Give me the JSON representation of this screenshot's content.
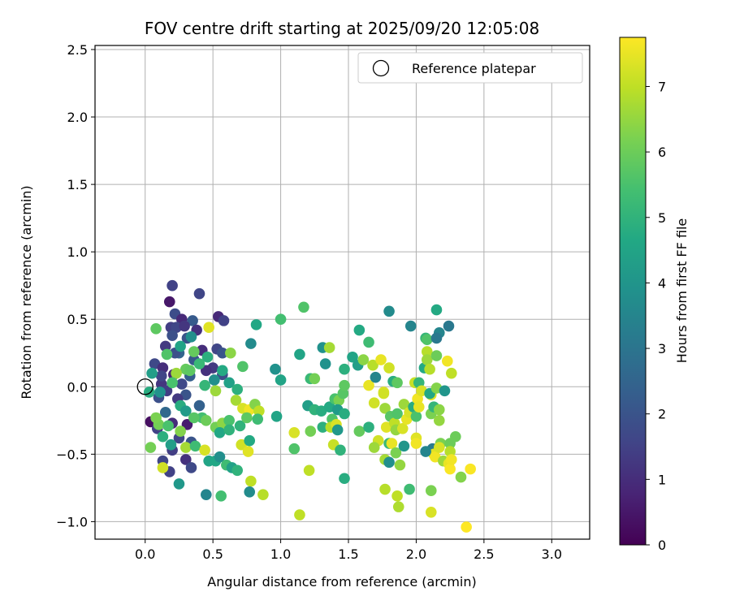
{
  "chart_data": {
    "type": "scatter",
    "title": "FOV centre drift starting at 2025/09/20 12:05:08",
    "xlabel": "Angular distance from reference (arcmin)",
    "ylabel": "Rotation from reference (arcmin)",
    "xlim": [
      -0.37,
      3.28
    ],
    "ylim": [
      -1.13,
      2.53
    ],
    "xticks": [
      "0.0",
      "0.5",
      "1.0",
      "1.5",
      "2.0",
      "2.5",
      "3.0"
    ],
    "yticks": [
      "−1.0",
      "−0.5",
      "0.0",
      "0.5",
      "1.0",
      "1.5",
      "2.0",
      "2.5"
    ],
    "grid": true,
    "legend": {
      "position": "top-right",
      "entries": [
        "Reference platepar"
      ]
    },
    "reference_point": {
      "x": 0.0,
      "y": 0.0
    },
    "colorbar": {
      "label": "Hours from first FF file",
      "range": [
        0,
        7.75
      ],
      "ticks": [
        "0",
        "1",
        "2",
        "3",
        "4",
        "5",
        "6",
        "7"
      ],
      "colormap": "viridis"
    },
    "points": [
      {
        "x": 0.2,
        "y": 0.75,
        "h": 1.5
      },
      {
        "x": 0.4,
        "y": 0.69,
        "h": 1.6
      },
      {
        "x": 0.18,
        "y": 0.63,
        "h": 0.5
      },
      {
        "x": 0.22,
        "y": 0.54,
        "h": 1.8
      },
      {
        "x": 0.27,
        "y": 0.5,
        "h": 0.9
      },
      {
        "x": 0.35,
        "y": 0.49,
        "h": 2.2
      },
      {
        "x": 0.54,
        "y": 0.52,
        "h": 0.9
      },
      {
        "x": 0.58,
        "y": 0.49,
        "h": 1.5
      },
      {
        "x": 0.19,
        "y": 0.44,
        "h": 1.4
      },
      {
        "x": 0.23,
        "y": 0.44,
        "h": 1.6
      },
      {
        "x": 0.29,
        "y": 0.45,
        "h": 1.2
      },
      {
        "x": 0.38,
        "y": 0.42,
        "h": 1.1
      },
      {
        "x": 0.2,
        "y": 0.38,
        "h": 1.9
      },
      {
        "x": 0.31,
        "y": 0.36,
        "h": 2.0
      },
      {
        "x": 0.15,
        "y": 0.3,
        "h": 1.3
      },
      {
        "x": 0.25,
        "y": 0.25,
        "h": 2.5
      },
      {
        "x": 0.42,
        "y": 0.27,
        "h": 1.0
      },
      {
        "x": 0.53,
        "y": 0.28,
        "h": 1.6
      },
      {
        "x": 0.57,
        "y": 0.25,
        "h": 2.0
      },
      {
        "x": 0.07,
        "y": 0.17,
        "h": 1.7
      },
      {
        "x": 0.13,
        "y": 0.14,
        "h": 1.0
      },
      {
        "x": 0.36,
        "y": 0.2,
        "h": 2.1
      },
      {
        "x": 0.5,
        "y": 0.14,
        "h": 1.3
      },
      {
        "x": 0.21,
        "y": 0.09,
        "h": 0.8
      },
      {
        "x": 0.33,
        "y": 0.08,
        "h": 2.3
      },
      {
        "x": 0.45,
        "y": 0.12,
        "h": 1.1
      },
      {
        "x": 0.57,
        "y": 0.09,
        "h": 1.8
      },
      {
        "x": 0.12,
        "y": 0.02,
        "h": 1.2
      },
      {
        "x": 0.27,
        "y": 0.02,
        "h": 1.7
      },
      {
        "x": 0.16,
        "y": -0.03,
        "h": 1.4
      },
      {
        "x": 0.3,
        "y": -0.06,
        "h": 2.0
      },
      {
        "x": 0.1,
        "y": -0.08,
        "h": 1.9
      },
      {
        "x": 0.24,
        "y": -0.09,
        "h": 1.3
      },
      {
        "x": 0.4,
        "y": -0.14,
        "h": 2.4
      },
      {
        "x": 0.15,
        "y": -0.19,
        "h": 2.6
      },
      {
        "x": 0.04,
        "y": -0.26,
        "h": 0.3
      },
      {
        "x": 0.2,
        "y": -0.27,
        "h": 1.0
      },
      {
        "x": 0.31,
        "y": -0.28,
        "h": 0.6
      },
      {
        "x": 0.09,
        "y": -0.31,
        "h": 1.5
      },
      {
        "x": 0.25,
        "y": -0.38,
        "h": 1.6
      },
      {
        "x": 0.34,
        "y": -0.41,
        "h": 2.0
      },
      {
        "x": 0.2,
        "y": -0.47,
        "h": 1.4
      },
      {
        "x": 0.13,
        "y": -0.55,
        "h": 1.6
      },
      {
        "x": 0.3,
        "y": -0.54,
        "h": 1.1
      },
      {
        "x": 0.18,
        "y": -0.63,
        "h": 1.5
      },
      {
        "x": 0.34,
        "y": -0.6,
        "h": 1.7
      },
      {
        "x": 0.22,
        "y": 0.25,
        "h": 1.9
      },
      {
        "x": 0.12,
        "y": 0.08,
        "h": 1.6
      },
      {
        "x": 0.08,
        "y": 0.43,
        "h": 5.8
      },
      {
        "x": 0.16,
        "y": 0.24,
        "h": 5.6
      },
      {
        "x": 0.26,
        "y": 0.3,
        "h": 4.5
      },
      {
        "x": 0.36,
        "y": 0.26,
        "h": 5.9
      },
      {
        "x": 0.3,
        "y": 0.13,
        "h": 5.9
      },
      {
        "x": 0.46,
        "y": 0.22,
        "h": 4.9
      },
      {
        "x": 0.47,
        "y": 0.44,
        "h": 7.4
      },
      {
        "x": 0.33,
        "y": 0.12,
        "h": 5.8
      },
      {
        "x": 0.4,
        "y": 0.17,
        "h": 5.2
      },
      {
        "x": 0.51,
        "y": 0.05,
        "h": 3.8
      },
      {
        "x": 0.57,
        "y": 0.12,
        "h": 4.7
      },
      {
        "x": 0.63,
        "y": 0.25,
        "h": 6.4
      },
      {
        "x": 0.72,
        "y": 0.15,
        "h": 5.6
      },
      {
        "x": 0.78,
        "y": 0.32,
        "h": 3.7
      },
      {
        "x": 0.82,
        "y": 0.46,
        "h": 4.6
      },
      {
        "x": 0.62,
        "y": 0.03,
        "h": 4.4
      },
      {
        "x": 0.68,
        "y": -0.02,
        "h": 4.9
      },
      {
        "x": 0.52,
        "y": -0.03,
        "h": 6.6
      },
      {
        "x": 0.44,
        "y": 0.01,
        "h": 5.1
      },
      {
        "x": 0.23,
        "y": 0.1,
        "h": 6.6
      },
      {
        "x": 0.2,
        "y": 0.03,
        "h": 5.5
      },
      {
        "x": 0.03,
        "y": -0.04,
        "h": 4.8
      },
      {
        "x": 0.11,
        "y": -0.04,
        "h": 3.9
      },
      {
        "x": 0.26,
        "y": -0.14,
        "h": 4.8
      },
      {
        "x": 0.3,
        "y": -0.18,
        "h": 4.2
      },
      {
        "x": 0.1,
        "y": -0.28,
        "h": 6.1
      },
      {
        "x": 0.08,
        "y": -0.23,
        "h": 6.2
      },
      {
        "x": 0.17,
        "y": -0.29,
        "h": 5.5
      },
      {
        "x": 0.26,
        "y": -0.33,
        "h": 6.3
      },
      {
        "x": 0.13,
        "y": -0.37,
        "h": 4.9
      },
      {
        "x": 0.19,
        "y": -0.43,
        "h": 4.3
      },
      {
        "x": 0.3,
        "y": -0.45,
        "h": 6.7
      },
      {
        "x": 0.37,
        "y": -0.44,
        "h": 5.3
      },
      {
        "x": 0.42,
        "y": -0.23,
        "h": 5.4
      },
      {
        "x": 0.45,
        "y": -0.25,
        "h": 6.0
      },
      {
        "x": 0.52,
        "y": -0.3,
        "h": 6.1
      },
      {
        "x": 0.57,
        "y": -0.27,
        "h": 6.4
      },
      {
        "x": 0.62,
        "y": -0.25,
        "h": 5.5
      },
      {
        "x": 0.55,
        "y": -0.34,
        "h": 4.6
      },
      {
        "x": 0.62,
        "y": -0.32,
        "h": 5.0
      },
      {
        "x": 0.7,
        "y": -0.29,
        "h": 5.0
      },
      {
        "x": 0.44,
        "y": -0.47,
        "h": 7.3
      },
      {
        "x": 0.47,
        "y": -0.55,
        "h": 4.5
      },
      {
        "x": 0.52,
        "y": -0.55,
        "h": 4.6
      },
      {
        "x": 0.55,
        "y": -0.52,
        "h": 3.8
      },
      {
        "x": 0.6,
        "y": -0.58,
        "h": 5.3
      },
      {
        "x": 0.64,
        "y": -0.6,
        "h": 4.4
      },
      {
        "x": 0.68,
        "y": -0.62,
        "h": 5.0
      },
      {
        "x": 0.45,
        "y": -0.8,
        "h": 3.5
      },
      {
        "x": 0.56,
        "y": -0.81,
        "h": 5.4
      },
      {
        "x": 0.25,
        "y": -0.72,
        "h": 4.1
      },
      {
        "x": 0.04,
        "y": -0.45,
        "h": 6.1
      },
      {
        "x": 0.13,
        "y": -0.6,
        "h": 7.2
      },
      {
        "x": 0.36,
        "y": -0.23,
        "h": 5.7
      },
      {
        "x": 0.05,
        "y": 0.1,
        "h": 4.3
      },
      {
        "x": 0.34,
        "y": 0.37,
        "h": 3.8
      },
      {
        "x": 0.67,
        "y": -0.1,
        "h": 6.7
      },
      {
        "x": 0.72,
        "y": -0.16,
        "h": 7.3
      },
      {
        "x": 0.77,
        "y": -0.17,
        "h": 7.6
      },
      {
        "x": 0.75,
        "y": -0.23,
        "h": 5.8
      },
      {
        "x": 0.81,
        "y": -0.13,
        "h": 6.3
      },
      {
        "x": 0.84,
        "y": -0.18,
        "h": 7.0
      },
      {
        "x": 0.83,
        "y": -0.24,
        "h": 5.3
      },
      {
        "x": 0.71,
        "y": -0.43,
        "h": 7.2
      },
      {
        "x": 0.77,
        "y": -0.4,
        "h": 4.7
      },
      {
        "x": 0.76,
        "y": -0.48,
        "h": 7.4
      },
      {
        "x": 0.78,
        "y": -0.7,
        "h": 7.0
      },
      {
        "x": 0.77,
        "y": -0.78,
        "h": 3.7
      },
      {
        "x": 0.87,
        "y": -0.8,
        "h": 6.9
      },
      {
        "x": 0.96,
        "y": 0.13,
        "h": 3.9
      },
      {
        "x": 1.0,
        "y": 0.5,
        "h": 5.4
      },
      {
        "x": 1.0,
        "y": 0.05,
        "h": 4.5
      },
      {
        "x": 0.97,
        "y": -0.22,
        "h": 4.5
      },
      {
        "x": 1.17,
        "y": 0.59,
        "h": 5.6
      },
      {
        "x": 1.14,
        "y": 0.24,
        "h": 4.5
      },
      {
        "x": 1.22,
        "y": 0.06,
        "h": 5.2
      },
      {
        "x": 1.25,
        "y": 0.06,
        "h": 6.1
      },
      {
        "x": 1.31,
        "y": 0.29,
        "h": 3.9
      },
      {
        "x": 1.36,
        "y": 0.29,
        "h": 6.7
      },
      {
        "x": 1.33,
        "y": 0.17,
        "h": 3.9
      },
      {
        "x": 1.2,
        "y": -0.14,
        "h": 4.3
      },
      {
        "x": 1.25,
        "y": -0.17,
        "h": 5.0
      },
      {
        "x": 1.3,
        "y": -0.18,
        "h": 4.8
      },
      {
        "x": 1.36,
        "y": -0.15,
        "h": 4.7
      },
      {
        "x": 1.4,
        "y": -0.09,
        "h": 5.5
      },
      {
        "x": 1.43,
        "y": -0.1,
        "h": 6.2
      },
      {
        "x": 1.46,
        "y": -0.05,
        "h": 5.7
      },
      {
        "x": 1.42,
        "y": -0.17,
        "h": 4.2
      },
      {
        "x": 1.38,
        "y": -0.24,
        "h": 5.6
      },
      {
        "x": 1.47,
        "y": -0.2,
        "h": 4.8
      },
      {
        "x": 1.1,
        "y": -0.34,
        "h": 7.3
      },
      {
        "x": 1.22,
        "y": -0.33,
        "h": 6.1
      },
      {
        "x": 1.31,
        "y": -0.3,
        "h": 4.9
      },
      {
        "x": 1.37,
        "y": -0.3,
        "h": 6.9
      },
      {
        "x": 1.41,
        "y": -0.28,
        "h": 7.3
      },
      {
        "x": 1.42,
        "y": -0.32,
        "h": 4.1
      },
      {
        "x": 1.39,
        "y": -0.43,
        "h": 7.1
      },
      {
        "x": 1.44,
        "y": -0.47,
        "h": 5.0
      },
      {
        "x": 1.1,
        "y": -0.46,
        "h": 5.6
      },
      {
        "x": 1.21,
        "y": -0.62,
        "h": 7.0
      },
      {
        "x": 1.47,
        "y": -0.68,
        "h": 4.8
      },
      {
        "x": 1.14,
        "y": -0.95,
        "h": 7.0
      },
      {
        "x": 1.47,
        "y": 0.13,
        "h": 4.9
      },
      {
        "x": 1.47,
        "y": 0.01,
        "h": 5.8
      },
      {
        "x": 1.53,
        "y": 0.22,
        "h": 4.5
      },
      {
        "x": 1.57,
        "y": 0.16,
        "h": 4.3
      },
      {
        "x": 1.58,
        "y": 0.42,
        "h": 4.7
      },
      {
        "x": 1.65,
        "y": 0.33,
        "h": 5.3
      },
      {
        "x": 1.61,
        "y": 0.2,
        "h": 6.4
      },
      {
        "x": 1.65,
        "y": 0.01,
        "h": 7.5
      },
      {
        "x": 1.58,
        "y": -0.33,
        "h": 5.9
      },
      {
        "x": 1.65,
        "y": -0.3,
        "h": 4.9
      },
      {
        "x": 1.69,
        "y": -0.12,
        "h": 7.2
      },
      {
        "x": 1.72,
        "y": -0.4,
        "h": 7.2
      },
      {
        "x": 1.69,
        "y": -0.45,
        "h": 6.6
      },
      {
        "x": 1.68,
        "y": 0.16,
        "h": 6.9
      },
      {
        "x": 1.7,
        "y": 0.07,
        "h": 3.5
      },
      {
        "x": 1.74,
        "y": 0.2,
        "h": 7.5
      },
      {
        "x": 1.76,
        "y": -0.04,
        "h": 7.4
      },
      {
        "x": 1.76,
        "y": -0.05,
        "h": 7.2
      },
      {
        "x": 1.77,
        "y": -0.16,
        "h": 6.6
      },
      {
        "x": 1.8,
        "y": 0.56,
        "h": 3.7
      },
      {
        "x": 1.8,
        "y": 0.14,
        "h": 7.2
      },
      {
        "x": 1.81,
        "y": -0.22,
        "h": 5.7
      },
      {
        "x": 1.78,
        "y": -0.3,
        "h": 7.4
      },
      {
        "x": 1.8,
        "y": -0.42,
        "h": 5.2
      },
      {
        "x": 1.82,
        "y": -0.42,
        "h": 7.5
      },
      {
        "x": 1.84,
        "y": -0.27,
        "h": 7.0
      },
      {
        "x": 1.86,
        "y": -0.2,
        "h": 5.6
      },
      {
        "x": 1.83,
        "y": 0.04,
        "h": 4.8
      },
      {
        "x": 1.86,
        "y": 0.03,
        "h": 5.8
      },
      {
        "x": 1.85,
        "y": -0.32,
        "h": 6.5
      },
      {
        "x": 1.77,
        "y": -0.54,
        "h": 6.7
      },
      {
        "x": 1.8,
        "y": -0.56,
        "h": 3.8
      },
      {
        "x": 1.85,
        "y": -0.49,
        "h": 6.2
      },
      {
        "x": 1.88,
        "y": -0.58,
        "h": 6.5
      },
      {
        "x": 1.77,
        "y": -0.76,
        "h": 6.9
      },
      {
        "x": 1.86,
        "y": -0.81,
        "h": 7.0
      },
      {
        "x": 1.87,
        "y": -0.89,
        "h": 6.8
      },
      {
        "x": 1.91,
        "y": -0.44,
        "h": 4.0
      },
      {
        "x": 1.9,
        "y": -0.31,
        "h": 7.3
      },
      {
        "x": 1.93,
        "y": -0.24,
        "h": 7.5
      },
      {
        "x": 1.91,
        "y": -0.13,
        "h": 6.6
      },
      {
        "x": 1.95,
        "y": -0.19,
        "h": 7.3
      },
      {
        "x": 1.96,
        "y": 0.45,
        "h": 3.5
      },
      {
        "x": 1.95,
        "y": -0.76,
        "h": 5.3
      },
      {
        "x": 1.98,
        "y": -0.15,
        "h": 4.8
      },
      {
        "x": 2.0,
        "y": -0.22,
        "h": 5.5
      },
      {
        "x": 1.99,
        "y": 0.03,
        "h": 7.1
      },
      {
        "x": 2.0,
        "y": -0.38,
        "h": 7.4
      },
      {
        "x": 2.0,
        "y": -0.42,
        "h": 7.6
      },
      {
        "x": 2.01,
        "y": -0.09,
        "h": 7.6
      },
      {
        "x": 2.02,
        "y": -0.15,
        "h": 7.5
      },
      {
        "x": 2.02,
        "y": 0.03,
        "h": 5.1
      },
      {
        "x": 2.04,
        "y": -0.03,
        "h": 7.3
      },
      {
        "x": 2.07,
        "y": 0.36,
        "h": 5.1
      },
      {
        "x": 2.06,
        "y": 0.14,
        "h": 4.7
      },
      {
        "x": 2.08,
        "y": 0.26,
        "h": 6.9
      },
      {
        "x": 2.08,
        "y": 0.2,
        "h": 6.6
      },
      {
        "x": 2.08,
        "y": 0.35,
        "h": 5.6
      },
      {
        "x": 2.1,
        "y": 0.13,
        "h": 6.9
      },
      {
        "x": 2.11,
        "y": -0.06,
        "h": 7.4
      },
      {
        "x": 2.11,
        "y": -0.2,
        "h": 6.2
      },
      {
        "x": 2.1,
        "y": -0.05,
        "h": 4.6
      },
      {
        "x": 2.13,
        "y": -0.15,
        "h": 5.1
      },
      {
        "x": 2.12,
        "y": -0.46,
        "h": 3.2
      },
      {
        "x": 2.13,
        "y": -0.5,
        "h": 7.4
      },
      {
        "x": 2.14,
        "y": -0.52,
        "h": 7.6
      },
      {
        "x": 2.15,
        "y": -0.01,
        "h": 6.3
      },
      {
        "x": 2.15,
        "y": 0.23,
        "h": 6.0
      },
      {
        "x": 2.15,
        "y": 0.57,
        "h": 4.7
      },
      {
        "x": 2.17,
        "y": 0.4,
        "h": 3.5
      },
      {
        "x": 2.15,
        "y": 0.36,
        "h": 3.1
      },
      {
        "x": 2.17,
        "y": -0.17,
        "h": 6.4
      },
      {
        "x": 2.17,
        "y": -0.25,
        "h": 6.5
      },
      {
        "x": 2.18,
        "y": -0.42,
        "h": 6.2
      },
      {
        "x": 2.17,
        "y": -0.45,
        "h": 7.3
      },
      {
        "x": 2.2,
        "y": -0.55,
        "h": 6.6
      },
      {
        "x": 2.21,
        "y": -0.03,
        "h": 4.0
      },
      {
        "x": 2.23,
        "y": 0.19,
        "h": 7.6
      },
      {
        "x": 2.24,
        "y": 0.45,
        "h": 3.1
      },
      {
        "x": 2.25,
        "y": -0.42,
        "h": 6.0
      },
      {
        "x": 2.25,
        "y": -0.48,
        "h": 6.9
      },
      {
        "x": 2.24,
        "y": -0.57,
        "h": 7.5
      },
      {
        "x": 2.25,
        "y": -0.61,
        "h": 7.7
      },
      {
        "x": 2.26,
        "y": 0.1,
        "h": 7.0
      },
      {
        "x": 2.26,
        "y": -0.54,
        "h": 7.6
      },
      {
        "x": 2.29,
        "y": -0.37,
        "h": 6.0
      },
      {
        "x": 2.33,
        "y": -0.67,
        "h": 6.3
      },
      {
        "x": 2.37,
        "y": -1.04,
        "h": 7.8
      },
      {
        "x": 2.4,
        "y": -0.61,
        "h": 7.7
      },
      {
        "x": 2.11,
        "y": -0.93,
        "h": 7.3
      },
      {
        "x": 2.11,
        "y": -0.77,
        "h": 6.2
      },
      {
        "x": 2.07,
        "y": -0.48,
        "h": 3.5
      }
    ]
  }
}
